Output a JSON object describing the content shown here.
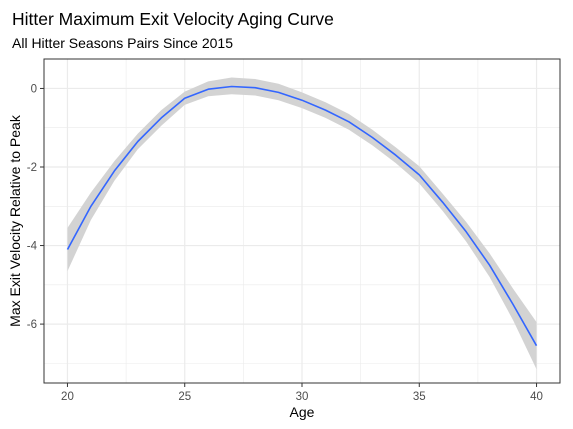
{
  "chart_data": {
    "type": "line",
    "title": "Hitter Maximum Exit Velocity Aging Curve",
    "subtitle": "All Hitter Seasons Pairs Since 2015",
    "xlabel": "Age",
    "ylabel": "Max Exit Velocity Relative to Peak",
    "xlim": [
      19,
      41
    ],
    "ylim": [
      -7.5,
      0.75
    ],
    "x_ticks": [
      20,
      25,
      30,
      35,
      40
    ],
    "x_minor": [
      22.5,
      27.5,
      32.5,
      37.5
    ],
    "y_ticks": [
      0,
      -2,
      -4,
      -6
    ],
    "y_minor": [
      -1,
      -3,
      -5,
      -7
    ],
    "grid": true,
    "series": [
      {
        "x": [
          20,
          21,
          22,
          23,
          24,
          25,
          26,
          27,
          28,
          29,
          30,
          31,
          32,
          33,
          34,
          35,
          36,
          37,
          38,
          39,
          40
        ],
        "y": [
          -4.1,
          -3.0,
          -2.1,
          -1.35,
          -0.75,
          -0.25,
          -0.02,
          0.05,
          0.02,
          -0.1,
          -0.3,
          -0.55,
          -0.85,
          -1.25,
          -1.7,
          -2.2,
          -2.9,
          -3.65,
          -4.5,
          -5.5,
          -6.55
        ],
        "lower": [
          -4.65,
          -3.35,
          -2.35,
          -1.55,
          -0.95,
          -0.42,
          -0.2,
          -0.15,
          -0.18,
          -0.3,
          -0.5,
          -0.75,
          -1.05,
          -1.45,
          -1.9,
          -2.42,
          -3.12,
          -3.9,
          -4.8,
          -5.9,
          -7.15
        ],
        "upper": [
          -3.55,
          -2.65,
          -1.85,
          -1.15,
          -0.55,
          -0.08,
          0.18,
          0.28,
          0.24,
          0.12,
          -0.1,
          -0.35,
          -0.65,
          -1.05,
          -1.5,
          -1.98,
          -2.68,
          -3.4,
          -4.2,
          -5.1,
          -5.95
        ]
      }
    ],
    "colors": {
      "line": "#3366ff",
      "ribbon": "#d3d3d3",
      "grid": "#ebebeb",
      "panel_border": "#333333"
    }
  }
}
